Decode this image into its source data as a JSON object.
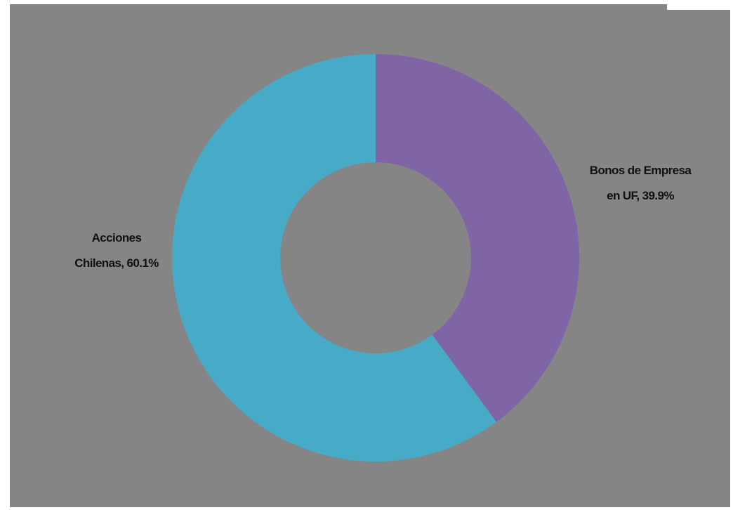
{
  "chart_data": {
    "type": "pie",
    "variant": "donut",
    "slices": [
      {
        "label_line1": "Bonos de Empresa",
        "label_line2": "en UF, 39.9%",
        "category": "Bonos de Empresa en UF",
        "value": 39.9,
        "color": "#7f65a5"
      },
      {
        "label_line1": "Acciones",
        "label_line2": "Chilenas, 60.1%",
        "category": "Acciones Chilenas",
        "value": 60.1,
        "color": "#47abc8"
      }
    ],
    "start": "top",
    "direction": "clockwise",
    "legend": "none",
    "data_labels": "outside",
    "background_color": "#858585"
  }
}
